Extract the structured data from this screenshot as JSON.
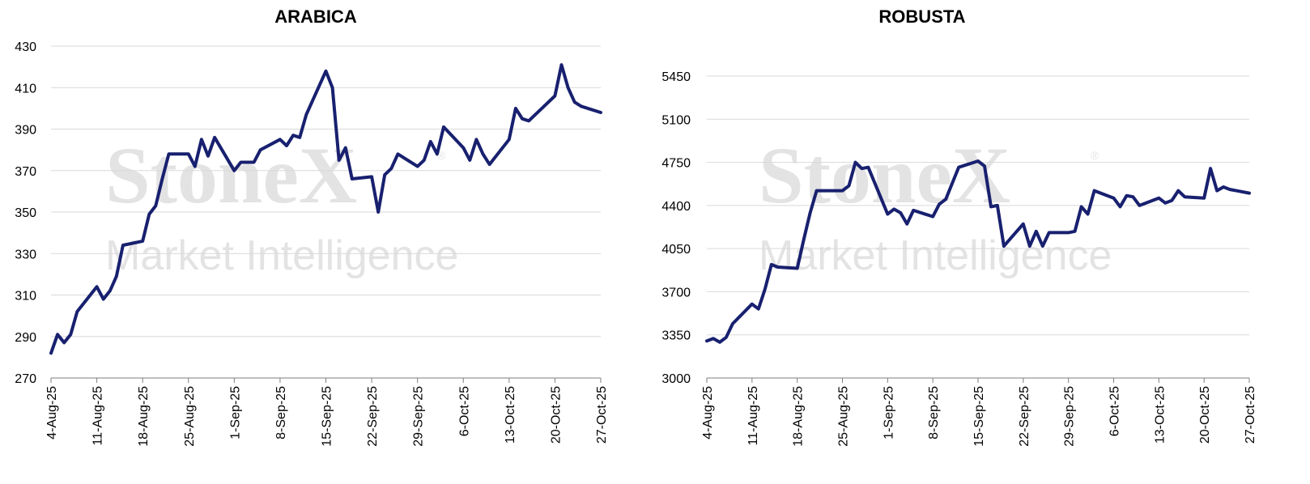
{
  "watermark": {
    "brand": "StoneX",
    "registered": "®",
    "tagline": "Market Intelligence"
  },
  "chart_data": [
    {
      "type": "line",
      "title": "ARABICA",
      "xlabel": "",
      "ylabel": "",
      "ylim": [
        270,
        430
      ],
      "yticks": [
        270,
        290,
        310,
        330,
        350,
        370,
        390,
        410,
        430
      ],
      "xtick_labels": [
        "4-Aug-25",
        "11-Aug-25",
        "18-Aug-25",
        "25-Aug-25",
        "1-Sep-25",
        "8-Sep-25",
        "15-Sep-25",
        "22-Sep-25",
        "29-Sep-25",
        "6-Oct-25",
        "13-Oct-25",
        "20-Oct-25",
        "27-Oct-25"
      ],
      "grid": true,
      "series": [
        {
          "color": "#18206f",
          "x": [
            "4-Aug-25",
            "5-Aug-25",
            "6-Aug-25",
            "7-Aug-25",
            "8-Aug-25",
            "11-Aug-25",
            "12-Aug-25",
            "13-Aug-25",
            "14-Aug-25",
            "15-Aug-25",
            "18-Aug-25",
            "19-Aug-25",
            "20-Aug-25",
            "21-Aug-25",
            "22-Aug-25",
            "25-Aug-25",
            "26-Aug-25",
            "27-Aug-25",
            "28-Aug-25",
            "29-Aug-25",
            "1-Sep-25",
            "2-Sep-25",
            "3-Sep-25",
            "4-Sep-25",
            "5-Sep-25",
            "8-Sep-25",
            "9-Sep-25",
            "10-Sep-25",
            "11-Sep-25",
            "12-Sep-25",
            "15-Sep-25",
            "16-Sep-25",
            "17-Sep-25",
            "18-Sep-25",
            "19-Sep-25",
            "22-Sep-25",
            "23-Sep-25",
            "24-Sep-25",
            "25-Sep-25",
            "26-Sep-25",
            "29-Sep-25",
            "30-Sep-25",
            "1-Oct-25",
            "2-Oct-25",
            "3-Oct-25",
            "6-Oct-25",
            "7-Oct-25",
            "8-Oct-25",
            "9-Oct-25",
            "10-Oct-25",
            "13-Oct-25",
            "14-Oct-25",
            "15-Oct-25",
            "16-Oct-25",
            "17-Oct-25",
            "20-Oct-25",
            "21-Oct-25",
            "22-Oct-25",
            "23-Oct-25",
            "24-Oct-25",
            "27-Oct-25"
          ],
          "values": [
            282,
            291,
            287,
            291,
            302,
            314,
            308,
            312,
            319,
            334,
            336,
            349,
            353,
            366,
            378,
            378,
            372,
            385,
            377,
            386,
            370,
            374,
            374,
            374,
            380,
            385,
            382,
            387,
            386,
            397,
            418,
            410,
            375,
            381,
            366,
            367,
            350,
            368,
            371,
            378,
            372,
            375,
            384,
            378,
            391,
            381,
            375,
            385,
            378,
            373,
            385,
            400,
            395,
            394,
            397,
            406,
            421,
            410,
            403,
            401,
            398
          ]
        }
      ]
    },
    {
      "type": "line",
      "title": "ROBUSTA",
      "xlabel": "",
      "ylabel": "",
      "ylim": [
        3000,
        5450
      ],
      "yticks": [
        3000,
        3350,
        3700,
        4050,
        4400,
        4750,
        5100,
        5450
      ],
      "xtick_labels": [
        "4-Aug-25",
        "11-Aug-25",
        "18-Aug-25",
        "25-Aug-25",
        "1-Sep-25",
        "8-Sep-25",
        "15-Sep-25",
        "22-Sep-25",
        "29-Sep-25",
        "6-Oct-25",
        "13-Oct-25",
        "20-Oct-25",
        "27-Oct-25"
      ],
      "grid": true,
      "series": [
        {
          "color": "#18206f",
          "x": [
            "4-Aug-25",
            "5-Aug-25",
            "6-Aug-25",
            "7-Aug-25",
            "8-Aug-25",
            "11-Aug-25",
            "12-Aug-25",
            "13-Aug-25",
            "14-Aug-25",
            "15-Aug-25",
            "18-Aug-25",
            "19-Aug-25",
            "20-Aug-25",
            "21-Aug-25",
            "22-Aug-25",
            "25-Aug-25",
            "26-Aug-25",
            "27-Aug-25",
            "28-Aug-25",
            "29-Aug-25",
            "1-Sep-25",
            "2-Sep-25",
            "3-Sep-25",
            "4-Sep-25",
            "5-Sep-25",
            "8-Sep-25",
            "9-Sep-25",
            "10-Sep-25",
            "11-Sep-25",
            "12-Sep-25",
            "15-Sep-25",
            "16-Sep-25",
            "17-Sep-25",
            "18-Sep-25",
            "19-Sep-25",
            "22-Sep-25",
            "23-Sep-25",
            "24-Sep-25",
            "25-Sep-25",
            "26-Sep-25",
            "29-Sep-25",
            "30-Sep-25",
            "1-Oct-25",
            "2-Oct-25",
            "3-Oct-25",
            "6-Oct-25",
            "7-Oct-25",
            "8-Oct-25",
            "9-Oct-25",
            "10-Oct-25",
            "13-Oct-25",
            "14-Oct-25",
            "15-Oct-25",
            "16-Oct-25",
            "17-Oct-25",
            "20-Oct-25",
            "21-Oct-25",
            "22-Oct-25",
            "23-Oct-25",
            "24-Oct-25",
            "27-Oct-25"
          ],
          "values": [
            3300,
            3320,
            3290,
            3330,
            3440,
            3600,
            3560,
            3720,
            3920,
            3900,
            3890,
            4120,
            4340,
            4520,
            4520,
            4520,
            4560,
            4750,
            4700,
            4710,
            4330,
            4370,
            4340,
            4250,
            4360,
            4310,
            4410,
            4450,
            4580,
            4710,
            4760,
            4720,
            4390,
            4400,
            4070,
            4250,
            4070,
            4190,
            4070,
            4180,
            4180,
            4190,
            4390,
            4330,
            4520,
            4460,
            4390,
            4480,
            4470,
            4400,
            4460,
            4420,
            4440,
            4520,
            4470,
            4460,
            4700,
            4520,
            4550,
            4530,
            4500
          ]
        }
      ]
    }
  ]
}
